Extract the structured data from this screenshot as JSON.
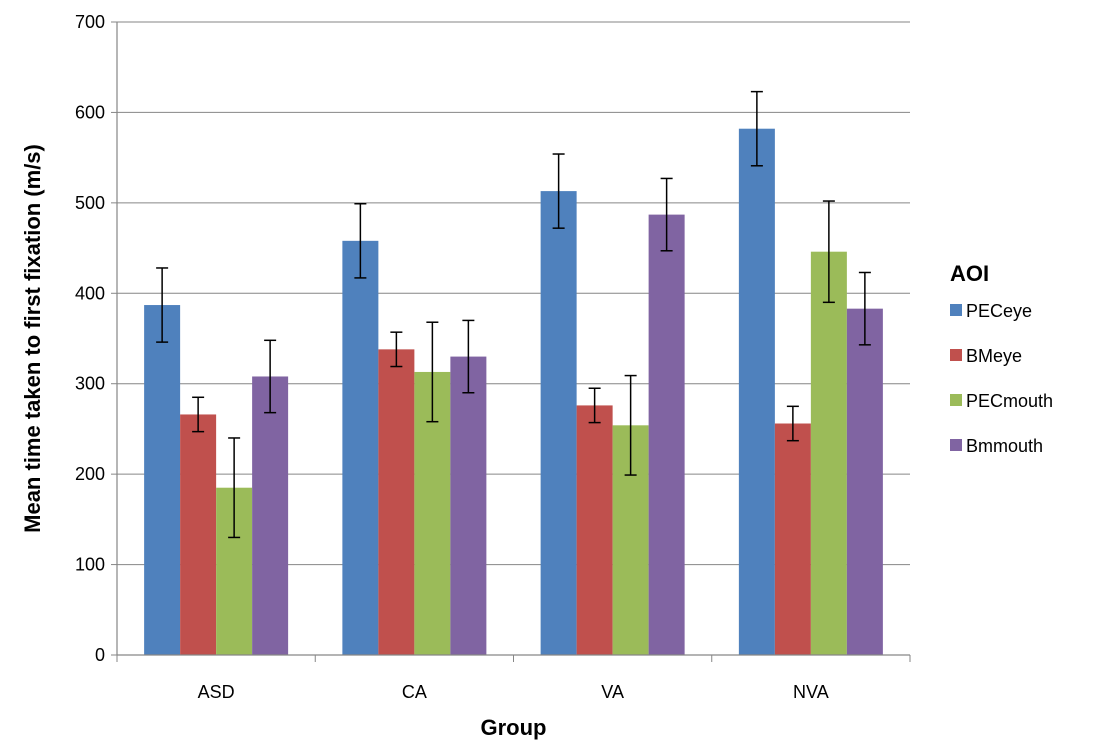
{
  "chart_data": {
    "type": "bar",
    "title": "",
    "xlabel": "Group",
    "ylabel": "Mean time taken to first fixation (m/s)",
    "ylim": [
      0,
      700
    ],
    "yticks": [
      0,
      100,
      200,
      300,
      400,
      500,
      600,
      700
    ],
    "grid": true,
    "categories": [
      "ASD",
      "CA",
      "VA",
      "NVA"
    ],
    "legend": {
      "title": "AOI",
      "position": "right"
    },
    "series": [
      {
        "name": "PECeye",
        "color": "#4F81BD",
        "values": [
          387,
          458,
          513,
          582
        ],
        "errors": [
          41,
          41,
          41,
          41
        ]
      },
      {
        "name": "BMeye",
        "color": "#C0504D",
        "values": [
          266,
          338,
          276,
          256
        ],
        "errors": [
          19,
          19,
          19,
          19
        ]
      },
      {
        "name": "PECmouth",
        "color": "#9BBB59",
        "values": [
          185,
          313,
          254,
          446
        ],
        "errors": [
          55,
          55,
          55,
          56
        ]
      },
      {
        "name": "Bmmouth",
        "color": "#8064A2",
        "values": [
          308,
          330,
          487,
          383
        ],
        "errors": [
          40,
          40,
          40,
          40
        ]
      }
    ]
  }
}
